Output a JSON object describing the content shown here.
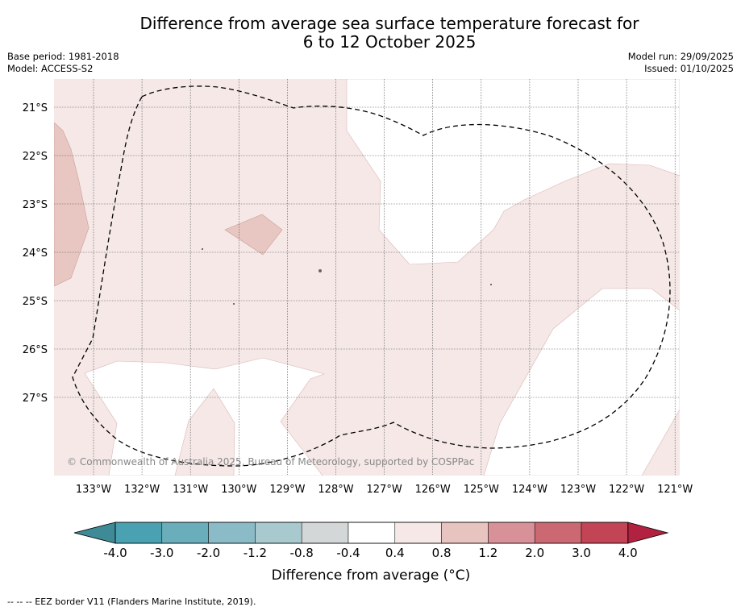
{
  "title": {
    "line1": "Difference from average sea surface temperature forecast for",
    "line2": "6 to 12 October 2025"
  },
  "meta": {
    "base_period": "Base period: 1981-2018",
    "model": "Model: ACCESS-S2",
    "model_run": "Model run: 29/09/2025",
    "issued": "Issued: 01/10/2025"
  },
  "map": {
    "lat_labels": [
      "21°S",
      "22°S",
      "23°S",
      "24°S",
      "25°S",
      "26°S",
      "27°S"
    ],
    "lon_labels": [
      "133°W",
      "132°W",
      "131°W",
      "130°W",
      "129°W",
      "128°W",
      "127°W",
      "126°W",
      "125°W",
      "124°W",
      "123°W",
      "122°W",
      "121°W"
    ],
    "credit": "© Commonwealth of Australia 2025, Bureau of Meteorology, supported by COSPPac"
  },
  "colorbar": {
    "title": "Difference from average (°C)",
    "labels": [
      "-4.0",
      "-3.0",
      "-2.0",
      "-1.2",
      "-0.8",
      "-0.4",
      "0.4",
      "0.8",
      "1.2",
      "2.0",
      "3.0",
      "4.0"
    ],
    "colors": [
      "#3e8a96",
      "#4aa1b1",
      "#6aaebb",
      "#8bbbc6",
      "#a8c9ce",
      "#d4d7d8",
      "#ffffff",
      "#f5e8e7",
      "#e8c4c0",
      "#d99199",
      "#cc6872",
      "#c24455",
      "#b22240"
    ]
  },
  "footer": "--  --  -- EEZ border V11 (Flanders Marine Institute, 2019)."
}
